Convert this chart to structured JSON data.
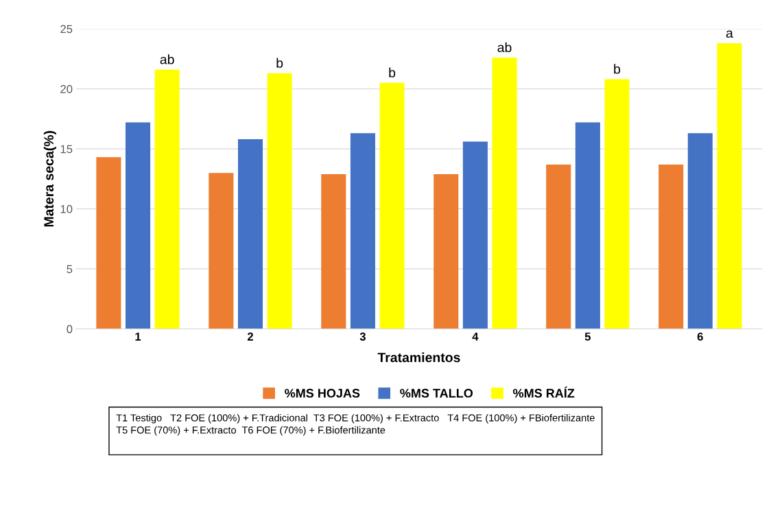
{
  "chart_data": {
    "type": "bar",
    "xlabel": "Tratamientos",
    "ylabel": "Matera seca(%)",
    "categories": [
      "1",
      "2",
      "3",
      "4",
      "5",
      "6"
    ],
    "series": [
      {
        "name": "%MS HOJAS",
        "color": "#ed7d31",
        "values": [
          14.3,
          13.0,
          12.9,
          12.9,
          13.7,
          13.7
        ]
      },
      {
        "name": "%MS TALLO",
        "color": "#4472c4",
        "values": [
          17.2,
          15.8,
          16.3,
          15.6,
          17.2,
          16.3
        ]
      },
      {
        "name": "%MS RAÍZ",
        "color": "#ffff00",
        "values": [
          21.6,
          21.3,
          20.5,
          22.6,
          20.8,
          23.8
        ],
        "value_labels": [
          "ab",
          "b",
          "b",
          "ab",
          "b",
          "a"
        ]
      }
    ],
    "ylim": [
      0,
      25
    ],
    "yticks": [
      0,
      5,
      10,
      15,
      20,
      25
    ],
    "grid": "y",
    "legend": "bottom",
    "annotations": [
      "T1 Testigo   T2 FOE (100%) + F.Tradicional  T3 FOE (100%) + F.Extracto   T4 FOE (100%) + FBiofertilizante\nT5 FOE (70%) + F.Extracto  T6 FOE (70%) + F.Biofertilizante"
    ]
  }
}
